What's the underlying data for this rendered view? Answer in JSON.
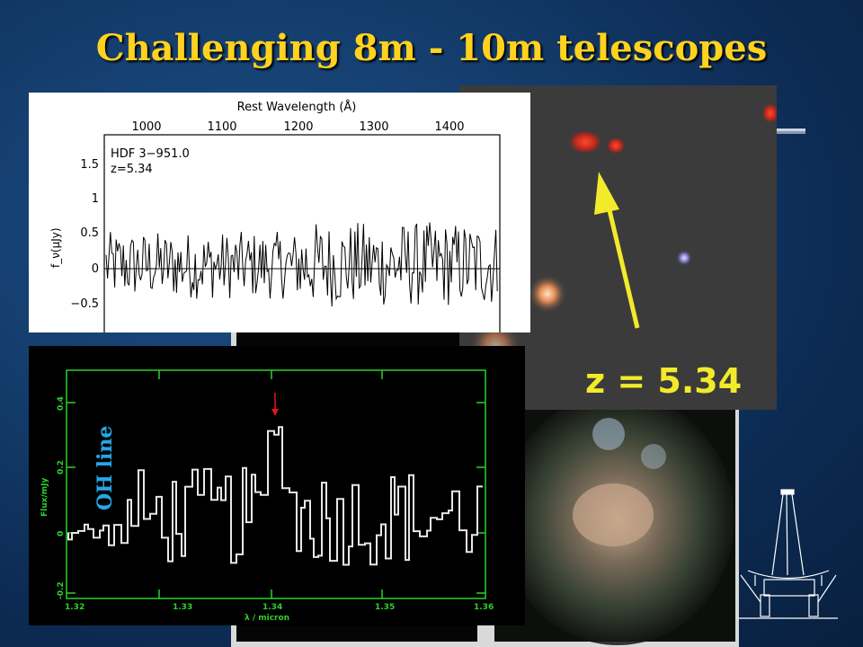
{
  "slide": {
    "title": "Challenging 8m - 10m telescopes"
  },
  "spectrum_top": {
    "top_axis_label": "Rest Wavelength (Å)",
    "top_ticks": [
      "1000",
      "1100",
      "1200",
      "1300",
      "1400"
    ],
    "left_ticks": [
      "1.5",
      "1",
      "0.5",
      "0",
      "−0.5"
    ],
    "y_label": "f_ν(μJy)",
    "object_name": "HDF 3−951.0",
    "redshift_label": "z=5.34"
  },
  "galaxy_image": {
    "redshift_label": "z = 5.34",
    "arrow_color": "#f2ea2a"
  },
  "spectrum_ir": {
    "line_label": "OH line",
    "y_label": "Flux/mJy",
    "x_label": "λ / micron",
    "x_ticks": [
      "1.32",
      "1.33",
      "1.34",
      "1.35",
      "1.36"
    ],
    "y_ticks": [
      "0.4",
      "0.2",
      "0",
      "-0.2"
    ],
    "frame_color": "#2bd32b",
    "marker_color": "#e01818"
  }
}
